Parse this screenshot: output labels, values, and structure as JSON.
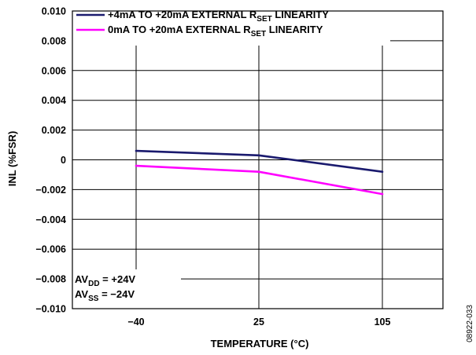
{
  "chart_data": {
    "type": "line",
    "x": [
      "-40",
      "25",
      "105"
    ],
    "x_tick_labels": [
      "−40",
      "25",
      "105"
    ],
    "xlabel": "TEMPERATURE (°C)",
    "ylabel": "INL (%FSR)",
    "ylim": [
      -0.01,
      0.01
    ],
    "y_ticks": [
      0.01,
      0.008,
      0.006,
      0.004,
      0.002,
      0,
      -0.002,
      -0.004,
      -0.006,
      -0.008,
      -0.01
    ],
    "y_tick_labels": [
      "0.010",
      "0.008",
      "0.006",
      "0.004",
      "0.002",
      "0",
      "−0.002",
      "−0.004",
      "−0.006",
      "−0.008",
      "−0.010"
    ],
    "grid": true,
    "legend_position": "top",
    "series": [
      {
        "name": "+4mA TO +20mA EXTERNAL RSET LINEARITY",
        "legend_prefix": "+4mA TO +20mA EXTERNAL R",
        "legend_sub": "SET",
        "legend_suffix": " LINEARITY",
        "color": "#1a1a6e",
        "values": [
          0.0006,
          0.0003,
          -0.0008
        ]
      },
      {
        "name": "0mA TO +20mA EXTERNAL RSET LINEARITY",
        "legend_prefix": "0mA TO +20mA EXTERNAL R",
        "legend_sub": "SET",
        "legend_suffix": " LINEARITY",
        "color": "#ff00ff",
        "values": [
          -0.0004,
          -0.0008,
          -0.0023
        ]
      }
    ],
    "annotations": [
      {
        "prefix": "AV",
        "sub": "DD",
        "suffix": " = +24V"
      },
      {
        "prefix": "AV",
        "sub": "SS",
        "suffix": " = −24V"
      }
    ],
    "figure_id": "08922-033"
  }
}
